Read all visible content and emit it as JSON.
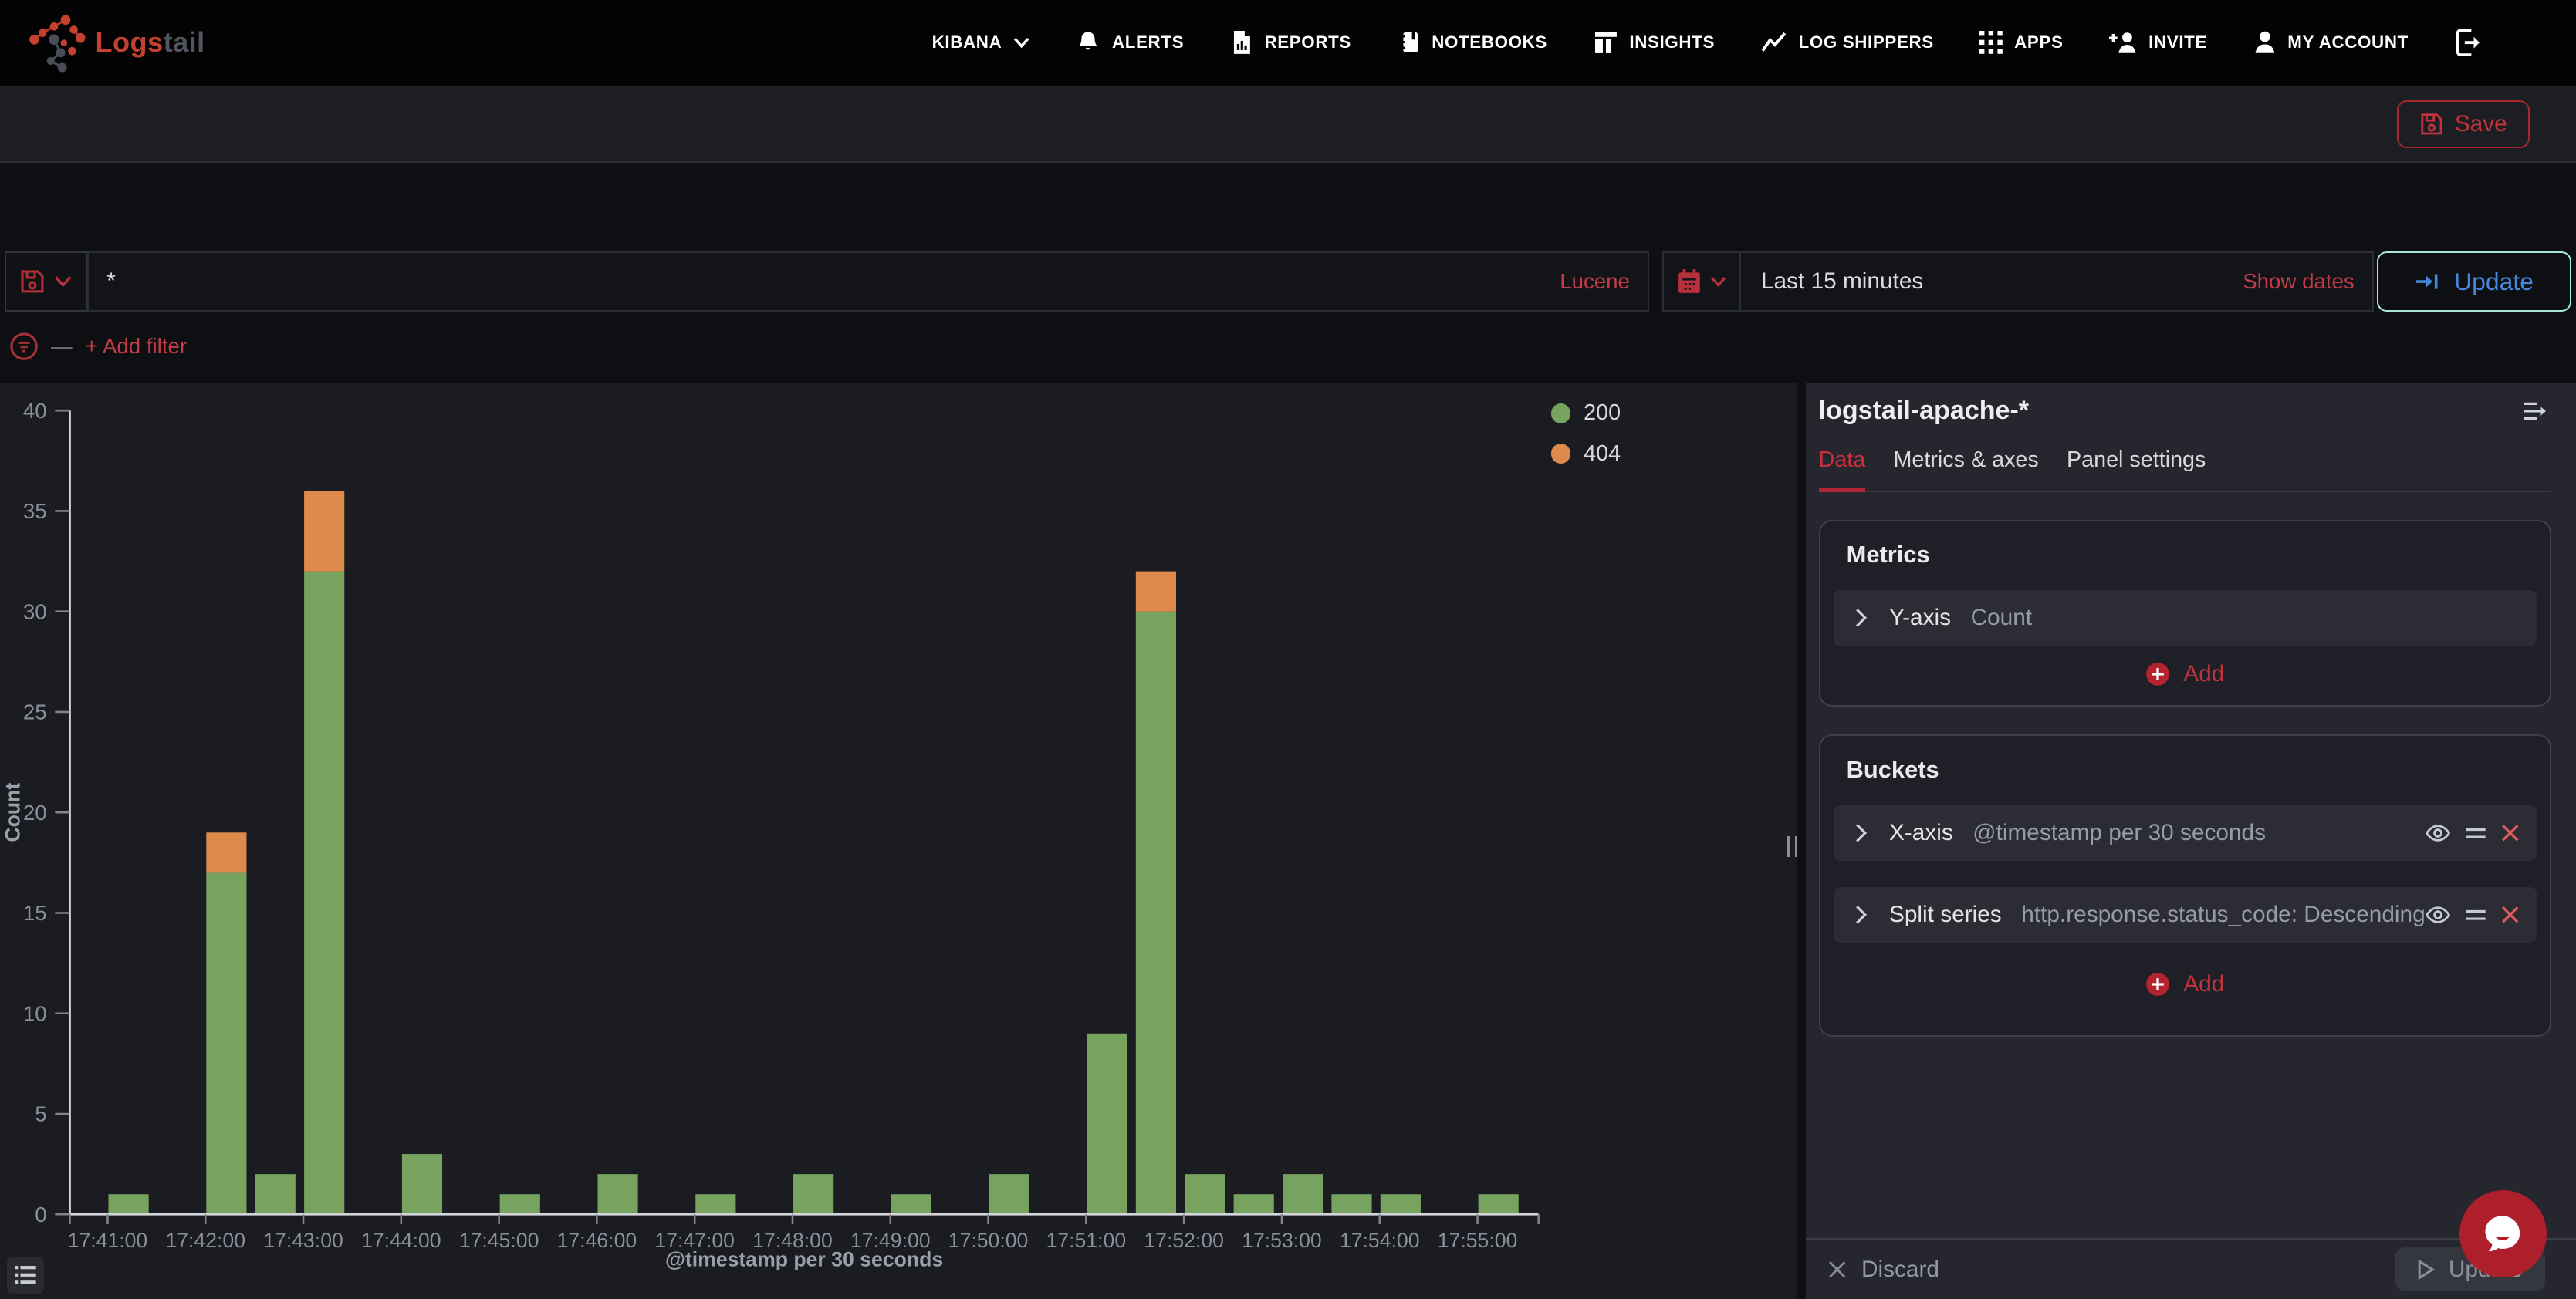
{
  "brand": {
    "text_primary": "Logs",
    "text_secondary": "tail"
  },
  "nav": {
    "items": [
      {
        "label": "KIBANA"
      },
      {
        "label": "ALERTS"
      },
      {
        "label": "REPORTS"
      },
      {
        "label": "NOTEBOOKS"
      },
      {
        "label": "INSIGHTS"
      },
      {
        "label": "LOG SHIPPERS"
      },
      {
        "label": "APPS"
      },
      {
        "label": "INVITE"
      },
      {
        "label": "MY ACCOUNT"
      }
    ]
  },
  "toolbar": {
    "save_label": "Save"
  },
  "query_bar": {
    "query_value": "*",
    "language_label": "Lucene",
    "time_range": "Last 15 minutes",
    "show_dates_label": "Show dates",
    "update_label": "Update"
  },
  "filter_bar": {
    "add_filter_label": "+ Add filter"
  },
  "chart_data": {
    "type": "bar",
    "stacked": true,
    "title": "",
    "xlabel": "@timestamp per 30 seconds",
    "ylabel": "Count",
    "ylim": [
      0,
      40
    ],
    "ytick_step": 5,
    "bucket_seconds": 30,
    "categories": [
      "17:41:00",
      "17:41:30",
      "17:42:00",
      "17:42:30",
      "17:43:00",
      "17:43:30",
      "17:44:00",
      "17:44:30",
      "17:45:00",
      "17:45:30",
      "17:46:00",
      "17:46:30",
      "17:47:00",
      "17:47:30",
      "17:48:00",
      "17:48:30",
      "17:49:00",
      "17:49:30",
      "17:50:00",
      "17:50:30",
      "17:51:00",
      "17:51:30",
      "17:52:00",
      "17:52:30",
      "17:53:00",
      "17:53:30",
      "17:54:00",
      "17:54:30",
      "17:55:00",
      "17:55:30"
    ],
    "x_tick_labels": [
      "17:41:00",
      "17:42:00",
      "17:43:00",
      "17:44:00",
      "17:45:00",
      "17:46:00",
      "17:47:00",
      "17:48:00",
      "17:49:00",
      "17:50:00",
      "17:51:00",
      "17:52:00",
      "17:53:00",
      "17:54:00",
      "17:55:00"
    ],
    "series": [
      {
        "name": "200",
        "color": "#77a35e",
        "values": [
          1,
          0,
          17,
          2,
          32,
          0,
          3,
          0,
          1,
          0,
          2,
          0,
          1,
          0,
          2,
          0,
          1,
          0,
          2,
          0,
          9,
          30,
          2,
          1,
          2,
          1,
          1,
          0,
          1,
          0
        ]
      },
      {
        "name": "404",
        "color": "#dd8a4c",
        "values": [
          0,
          0,
          2,
          0,
          4,
          0,
          0,
          0,
          0,
          0,
          0,
          0,
          0,
          0,
          0,
          0,
          0,
          0,
          0,
          0,
          0,
          2,
          0,
          0,
          0,
          0,
          0,
          0,
          0,
          0
        ]
      }
    ],
    "legend_position": "top-right",
    "grid": false
  },
  "side_panel": {
    "title": "logstail-apache-*",
    "tabs": [
      {
        "label": "Data"
      },
      {
        "label": "Metrics & axes"
      },
      {
        "label": "Panel settings"
      }
    ],
    "active_tab": "Data",
    "metrics": {
      "heading": "Metrics",
      "rows": [
        {
          "label": "Y-axis",
          "value": "Count"
        }
      ],
      "add_label": "Add"
    },
    "buckets": {
      "heading": "Buckets",
      "rows": [
        {
          "label": "X-axis",
          "value": "@timestamp per 30 seconds"
        },
        {
          "label": "Split series",
          "value": "http.response.status_code: Descending"
        }
      ],
      "add_label": "Add"
    },
    "footer": {
      "discard_label": "Discard",
      "update_label": "Update"
    }
  }
}
